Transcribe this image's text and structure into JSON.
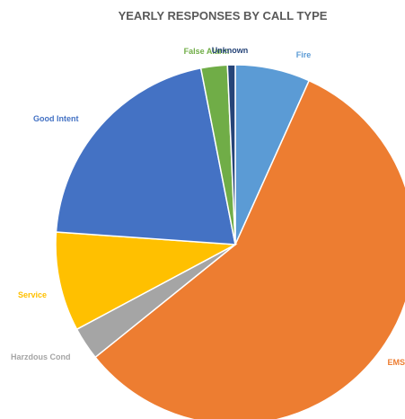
{
  "chart_data": {
    "type": "pie",
    "title": "YEARLY RESPONSES BY CALL TYPE",
    "categories": [
      "Fire",
      "EMS",
      "Harzdous Cond",
      "Service",
      "Good Intent",
      "False Alarm",
      "Unknown"
    ],
    "values": [
      6.8,
      58.0,
      3.0,
      9.0,
      21.0,
      2.4,
      0.7
    ],
    "colors": [
      "#5B9BD5",
      "#ED7D31",
      "#A5A5A5",
      "#FFC000",
      "#4472C4",
      "#70AD47",
      "#264478"
    ],
    "label_colors": [
      "#5B9BD5",
      "#ED7D31",
      "#A5A5A5",
      "#FFC000",
      "#4472C4",
      "#70AD47",
      "#264478"
    ],
    "legend": "none",
    "start_angle": "12 o'clock",
    "direction": "clockwise"
  }
}
